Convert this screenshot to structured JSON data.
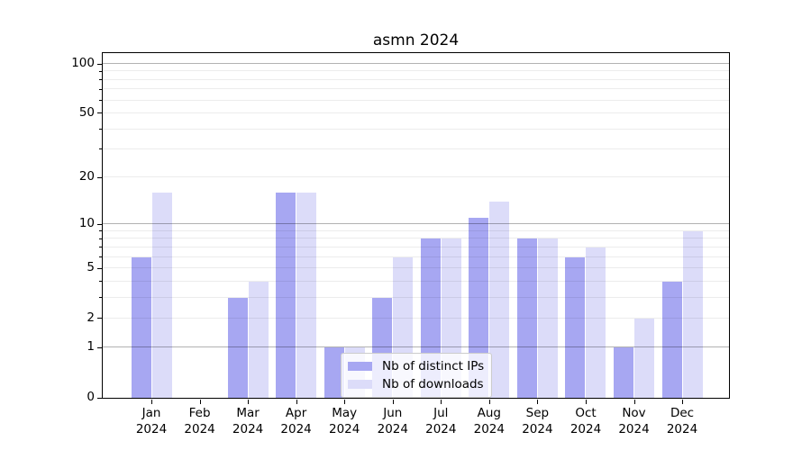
{
  "title": "asmn 2024",
  "chart_data": {
    "type": "bar",
    "title": "asmn 2024",
    "categories": [
      "Jan 2024",
      "Feb 2024",
      "Mar 2024",
      "Apr 2024",
      "May 2024",
      "Jun 2024",
      "Jul 2024",
      "Aug 2024",
      "Sep 2024",
      "Oct 2024",
      "Nov 2024",
      "Dec 2024"
    ],
    "series": [
      {
        "name": "Nb of distinct IPs",
        "color": "#a7a7f2",
        "values": [
          6,
          0,
          3,
          16,
          1,
          3,
          8,
          11,
          8,
          6,
          1,
          4
        ]
      },
      {
        "name": "Nb of downloads",
        "color": "#dcdcf9",
        "values": [
          16,
          0,
          4,
          16,
          1,
          6,
          8,
          14,
          8,
          7,
          2,
          9
        ]
      }
    ],
    "xlabel": "",
    "ylabel": "",
    "yscale": "log1p",
    "ylim": [
      0,
      116
    ],
    "yticks_labeled": [
      0,
      1,
      2,
      5,
      10,
      20,
      50,
      100
    ],
    "grid_major": [
      1,
      10,
      100
    ],
    "grid_minor": [
      2,
      3,
      4,
      5,
      6,
      7,
      8,
      9,
      20,
      30,
      40,
      50,
      60,
      70,
      80,
      90
    ],
    "grid": true,
    "legend_position": "inside lower center-left",
    "colors": {
      "grid_major": "#b0b0b0",
      "grid_minor": "#e8e8e8",
      "axis": "#000000",
      "background": "#ffffff",
      "text": "#000000"
    }
  }
}
